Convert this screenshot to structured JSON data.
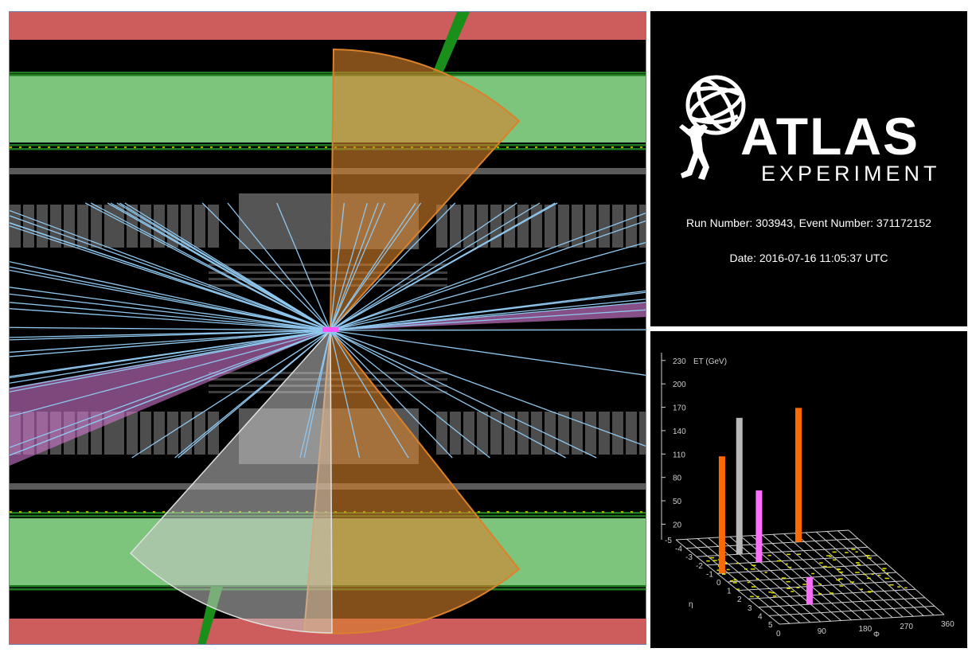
{
  "app": {
    "brand_name": "ATLAS",
    "brand_sub": "EXPERIMENT"
  },
  "event": {
    "run_text": "Run Number: 303943, Event Number: 371172152",
    "date_text": "Date: 2016-07-16 11:05:37 UTC"
  },
  "colors": {
    "muon_chamber": "#cd5c5c",
    "hadronic_calo": "#7dc47d",
    "tracks": "#8fc7ee",
    "jet_orange": "#d9822b",
    "jet_grey": "#c8c8c8",
    "missing_et_violet": "#d07ad0",
    "lego_orange": "#ff6a00",
    "lego_grey": "#b8b8b8",
    "lego_pink": "#ff6dff"
  },
  "chart_data": {
    "type": "lego-3d-bar",
    "zlabel": "ET (GeV)",
    "z_ticks": [
      20,
      50,
      80,
      110,
      140,
      170,
      200,
      230
    ],
    "phi_label": "Φ",
    "eta_label": "η",
    "phi_ticks": [
      0,
      90,
      180,
      270,
      360
    ],
    "eta_ticks": [
      -5,
      -4,
      -3,
      -2,
      -1,
      0,
      1,
      2,
      3,
      4,
      5
    ],
    "bars": [
      {
        "eta": -1,
        "phi": 10,
        "et": 150,
        "color": "orange"
      },
      {
        "eta": -3,
        "phi": 90,
        "et": 175,
        "color": "grey"
      },
      {
        "eta": -2,
        "phi": 110,
        "et": 92,
        "color": "pink"
      },
      {
        "eta": 3,
        "phi": 110,
        "et": 35,
        "color": "pink"
      },
      {
        "eta": -4,
        "phi": 235,
        "et": 172,
        "color": "orange"
      }
    ]
  }
}
